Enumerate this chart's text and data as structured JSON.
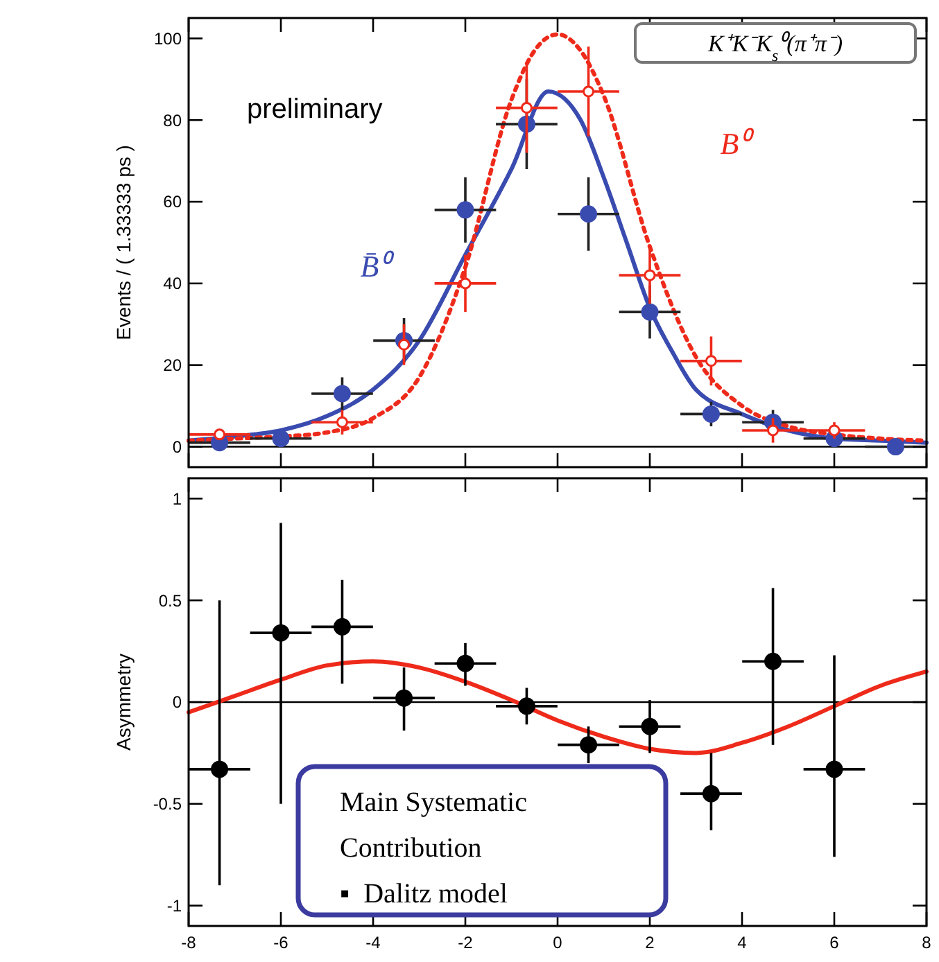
{
  "chart_data": [
    {
      "type": "scatter",
      "ylabel": "Events / ( 1.33333 ps )",
      "xlim": [
        -8,
        8
      ],
      "ylim": [
        -5,
        105
      ],
      "yticks": [
        0,
        20,
        40,
        60,
        80,
        100
      ],
      "xticks": [
        -8,
        -6,
        -4,
        -2,
        0,
        2,
        4,
        6,
        8
      ],
      "tick_labels": "y",
      "grid": false,
      "legend": false,
      "annotations": [
        "preliminary",
        "K⁺K⁻K$_{s}$⁰(π⁺π⁻)"
      ],
      "ref_lines": [
        {
          "axis": "y",
          "value": 0,
          "color": "#000000"
        }
      ],
      "series": [
        {
          "name": "B̄⁰",
          "type": "scatter",
          "marker": "circle",
          "color": "#3a4bb0",
          "x": [
            -7.33,
            -6,
            -4.67,
            -3.33,
            -2,
            -0.67,
            0.67,
            2,
            3.33,
            4.67,
            6,
            7.33
          ],
          "values": [
            1,
            2,
            13,
            26,
            58,
            79,
            57,
            33,
            8,
            6,
            2,
            0
          ],
          "errors": [
            null,
            null,
            4,
            5.5,
            8,
            11,
            9,
            6.5,
            3,
            3,
            1.5,
            null
          ],
          "xerrors": [
            0.667,
            0.667,
            0.667,
            0.667,
            0.667,
            0.667,
            0.667,
            0.667,
            0.667,
            0.667,
            0.667,
            0.667
          ]
        },
        {
          "type": "line",
          "line_style": "solid",
          "color": "#3a4bb0",
          "x": [
            -8,
            -7,
            -6,
            -5,
            -4,
            -3,
            -2,
            -1,
            -0.2,
            0.5,
            1,
            1.5,
            2,
            2.5,
            3,
            4,
            5,
            6,
            7,
            8
          ],
          "values": [
            1.5,
            2.5,
            4,
            7.5,
            14,
            26,
            47,
            68,
            87,
            80,
            66,
            50,
            34,
            23,
            14,
            8,
            4,
            2,
            1.5,
            1
          ]
        },
        {
          "name": "B⁰",
          "type": "scatter",
          "marker": "circle",
          "color": "#ee2a1b",
          "x": [
            -7.33,
            -4.67,
            -3.33,
            -2,
            -0.67,
            0.67,
            2,
            3.33,
            4.67,
            6
          ],
          "values": [
            3,
            6,
            25,
            40,
            83,
            87,
            42,
            21,
            4,
            4
          ],
          "errors": [
            1,
            3,
            5,
            7,
            11,
            11,
            7,
            6,
            3,
            2
          ],
          "xerrors": [
            0.667,
            0.667,
            null,
            0.667,
            0.667,
            0.667,
            0.667,
            0.667,
            0.667,
            0.667
          ]
        },
        {
          "type": "line",
          "line_style": "dotted",
          "color": "#ee2a1b",
          "x": [
            -8,
            -7,
            -6,
            -5,
            -4,
            -3,
            -2,
            -1,
            -0.5,
            0,
            0.5,
            1,
            2,
            3,
            4,
            5,
            6,
            7,
            8
          ],
          "values": [
            1.5,
            2,
            2.5,
            3.5,
            7,
            17,
            44,
            85,
            97,
            101,
            97,
            86,
            49,
            22,
            10,
            5,
            3,
            2,
            1.5
          ]
        }
      ]
    },
    {
      "type": "scatter",
      "ylabel": "Asymmetry",
      "xlim": [
        -8,
        8
      ],
      "ylim": [
        -1.1,
        1.1
      ],
      "xticks": [
        -8,
        -6,
        -4,
        -2,
        0,
        2,
        4,
        6,
        8
      ],
      "yticks": [
        -1,
        -0.5,
        0,
        0.5,
        1
      ],
      "grid": false,
      "legend": false,
      "annotations": [
        "Main Systematic Contribution",
        "▪  Dalitz model"
      ],
      "ref_lines": [
        {
          "axis": "y",
          "value": 0,
          "color": "#000000"
        }
      ],
      "series": [
        {
          "type": "scatter",
          "marker": "circle",
          "color": "#000000",
          "x": [
            -7.33,
            -6,
            -4.67,
            -3.33,
            -2,
            -0.67,
            0.67,
            2,
            3.33,
            4.67,
            6
          ],
          "values": [
            -0.33,
            0.34,
            0.37,
            0.02,
            0.19,
            -0.02,
            -0.21,
            -0.12,
            -0.45,
            0.2,
            -0.33
          ],
          "errors": [
            [
              -0.9,
              0.5
            ],
            [
              -0.5,
              0.88
            ],
            [
              0.09,
              0.6
            ],
            [
              -0.14,
              0.17
            ],
            [
              0.08,
              0.29
            ],
            [
              -0.11,
              0.07
            ],
            [
              -0.3,
              -0.12
            ],
            [
              -0.25,
              0.01
            ],
            [
              -0.63,
              -0.25
            ],
            [
              -0.21,
              0.56
            ],
            [
              -0.76,
              0.23
            ]
          ],
          "xerrors": [
            0.667,
            0.667,
            0.667,
            0.667,
            0.667,
            0.667,
            0.667,
            0.667,
            0.667,
            0.667,
            0.667
          ]
        },
        {
          "type": "line",
          "line_style": "solid",
          "color": "#ee2a1b",
          "x": [
            -8,
            -7,
            -6,
            -5,
            -4,
            -3,
            -2,
            -1,
            0,
            1,
            2,
            3,
            4,
            5,
            6,
            7,
            8
          ],
          "values": [
            -0.05,
            0.03,
            0.11,
            0.18,
            0.2,
            0.17,
            0.1,
            0.01,
            -0.09,
            -0.17,
            -0.23,
            -0.25,
            -0.2,
            -0.12,
            -0.02,
            0.08,
            0.15
          ]
        }
      ]
    }
  ]
}
